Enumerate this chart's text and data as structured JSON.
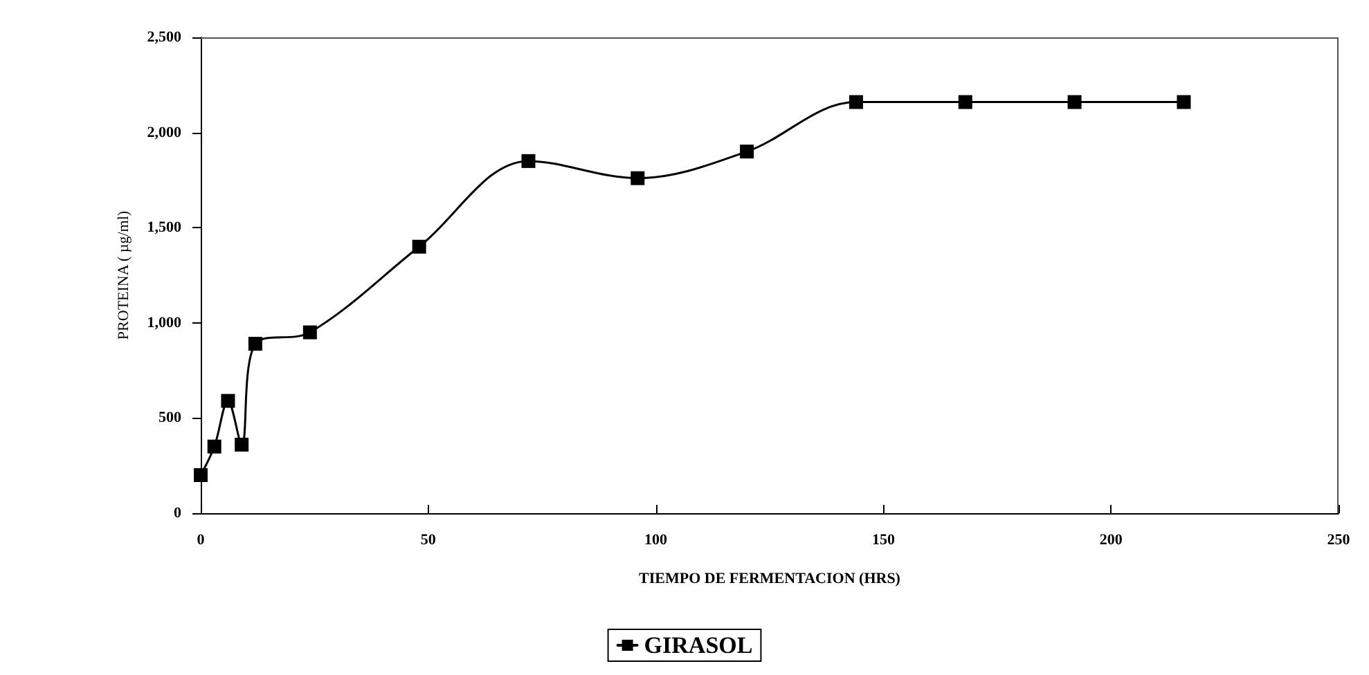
{
  "chart_data": {
    "type": "line",
    "xlabel": "TIEMPO DE FERMENTACION (HRS)",
    "ylabel": "PROTEINA ( µg/ml)",
    "x": [
      0,
      3,
      6,
      9,
      12,
      24,
      48,
      72,
      96,
      120,
      144,
      168,
      192,
      216
    ],
    "series": [
      {
        "name": "GIRASOL",
        "color": "#000000",
        "values": [
          200,
          350,
          590,
          360,
          890,
          950,
          1400,
          1850,
          1760,
          1900,
          2160,
          2160,
          2160,
          2160
        ]
      }
    ],
    "xlim": [
      0,
      250
    ],
    "xticks": [
      0,
      50,
      100,
      150,
      200,
      250
    ],
    "ylim": [
      0,
      2500
    ],
    "yticks": [
      0,
      500,
      {
        "value": 1000,
        "label": "1,000"
      },
      {
        "value": 1500,
        "label": "1,500"
      },
      {
        "value": 2000,
        "label": "2,000"
      },
      {
        "value": 2500,
        "label": "2,500"
      }
    ],
    "grid": false,
    "legend": "bottom",
    "marker": "square",
    "line_style": "solid"
  }
}
